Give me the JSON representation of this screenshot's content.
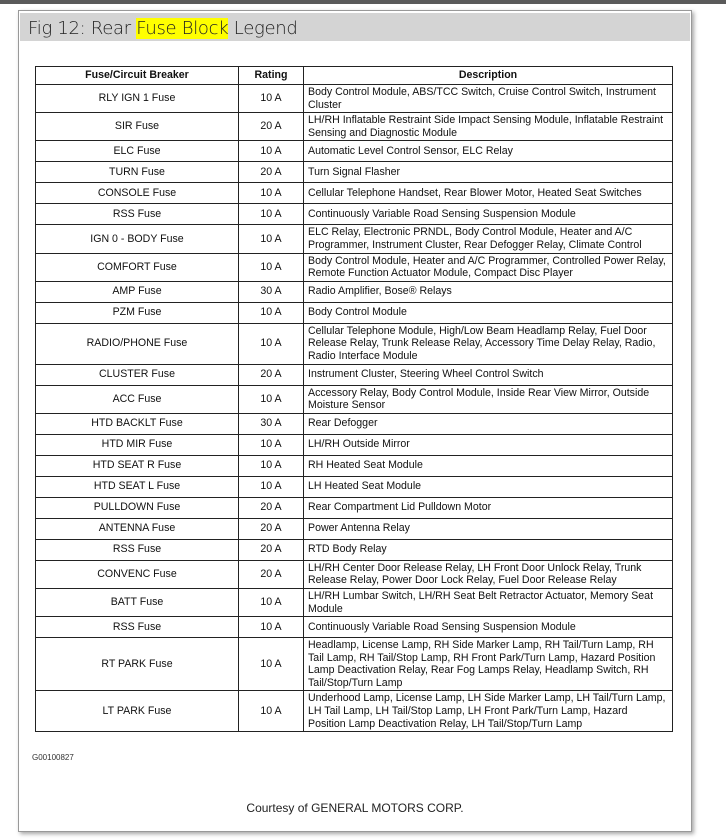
{
  "title": {
    "prefix": "Fig 12: Rear ",
    "highlight": "Fuse Block",
    "suffix": " Legend"
  },
  "highlight_color": "#ffff00",
  "table": {
    "headers": [
      "Fuse/Circuit Breaker",
      "Rating",
      "Description"
    ],
    "rows": [
      {
        "fuse": "RLY IGN 1 Fuse",
        "rating": "10 A",
        "description": "Body Control Module, ABS/TCC Switch, Cruise Control Switch, Instrument Cluster"
      },
      {
        "fuse": "SIR Fuse",
        "rating": "20 A",
        "description": "LH/RH Inflatable Restraint Side Impact Sensing Module, Inflatable Restraint Sensing and Diagnostic Module"
      },
      {
        "fuse": "ELC Fuse",
        "rating": "10 A",
        "description": "Automatic Level Control Sensor, ELC Relay"
      },
      {
        "fuse": "TURN Fuse",
        "rating": "20 A",
        "description": "Turn Signal Flasher"
      },
      {
        "fuse": "CONSOLE Fuse",
        "rating": "10 A",
        "description": "Cellular Telephone Handset, Rear Blower Motor, Heated Seat Switches"
      },
      {
        "fuse": "RSS Fuse",
        "rating": "10 A",
        "description": "Continuously Variable Road Sensing Suspension Module"
      },
      {
        "fuse": "IGN 0 - BODY Fuse",
        "rating": "10 A",
        "description": "ELC Relay, Electronic PRNDL, Body Control Module, Heater and A/C Programmer, Instrument Cluster, Rear Defogger Relay, Climate Control"
      },
      {
        "fuse": "COMFORT Fuse",
        "rating": "10 A",
        "description": "Body Control Module, Heater and A/C Programmer, Controlled Power Relay, Remote Function Actuator Module, Compact Disc Player"
      },
      {
        "fuse": "AMP Fuse",
        "rating": "30 A",
        "description": "Radio Amplifier, Bose® Relays"
      },
      {
        "fuse": "PZM Fuse",
        "rating": "10 A",
        "description": "Body Control Module"
      },
      {
        "fuse": "RADIO/PHONE Fuse",
        "rating": "10 A",
        "description": "Cellular Telephone Module, High/Low Beam Headlamp Relay, Fuel Door Release Relay, Trunk Release Relay, Accessory Time Delay Relay, Radio, Radio Interface Module"
      },
      {
        "fuse": "CLUSTER Fuse",
        "rating": "20 A",
        "description": "Instrument Cluster, Steering Wheel Control Switch"
      },
      {
        "fuse": "ACC Fuse",
        "rating": "10 A",
        "description": "Accessory Relay, Body Control Module, Inside Rear View Mirror, Outside Moisture Sensor"
      },
      {
        "fuse": "HTD BACKLT Fuse",
        "rating": "30 A",
        "description": "Rear Defogger"
      },
      {
        "fuse": "HTD MIR Fuse",
        "rating": "10 A",
        "description": "LH/RH Outside Mirror"
      },
      {
        "fuse": "HTD SEAT R Fuse",
        "rating": "10 A",
        "description": "RH Heated Seat Module"
      },
      {
        "fuse": "HTD SEAT L Fuse",
        "rating": "10 A",
        "description": "LH Heated Seat Module"
      },
      {
        "fuse": "PULLDOWN Fuse",
        "rating": "20 A",
        "description": "Rear Compartment Lid Pulldown Motor"
      },
      {
        "fuse": "ANTENNA Fuse",
        "rating": "20 A",
        "description": "Power Antenna Relay"
      },
      {
        "fuse": "RSS Fuse",
        "rating": "20 A",
        "description": "RTD Body Relay"
      },
      {
        "fuse": "CONVENC Fuse",
        "rating": "20 A",
        "description": "LH/RH Center Door Release Relay, LH Front Door Unlock Relay, Trunk Release Relay, Power Door Lock Relay, Fuel Door Release Relay"
      },
      {
        "fuse": "BATT Fuse",
        "rating": "10 A",
        "description": "LH/RH Lumbar Switch, LH/RH Seat Belt Retractor Actuator, Memory Seat Module"
      },
      {
        "fuse": "RSS Fuse",
        "rating": "10 A",
        "description": "Continuously Variable Road Sensing Suspension Module"
      },
      {
        "fuse": "RT PARK Fuse",
        "rating": "10 A",
        "description": "Headlamp, License Lamp, RH Side Marker Lamp, RH Tail/Turn Lamp, RH Tail Lamp, RH Tail/Stop Lamp, RH Front Park/Turn Lamp, Hazard Position Lamp Deactivation Relay, Rear Fog Lamps Relay, Headlamp Switch, RH Tail/Stop/Turn Lamp"
      },
      {
        "fuse": "LT PARK Fuse",
        "rating": "10 A",
        "description": "Underhood Lamp, License Lamp, LH Side Marker Lamp, LH Tail/Turn Lamp, LH Tail Lamp, LH Tail/Stop Lamp, LH Front Park/Turn Lamp, Hazard Position Lamp Deactivation Relay, LH Tail/Stop/Turn Lamp"
      }
    ]
  },
  "figure_code": "G00100827",
  "courtesy": "Courtesy of GENERAL MOTORS CORP."
}
